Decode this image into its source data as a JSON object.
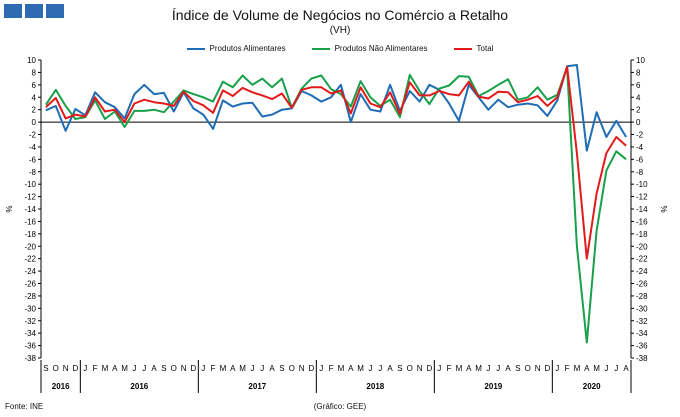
{
  "header": {
    "title": "Índice de Volume  de Negócios no Comércio a Retalho",
    "subtitle": "(VH)"
  },
  "footer": {
    "source": "Fonte: INE",
    "credit": "(Gráfico: GEE)"
  },
  "colors": {
    "logo": "#2e6bb3",
    "axis": "#000000",
    "zero_line": "#000000"
  },
  "chart_data": {
    "type": "line",
    "ylabel": "%",
    "y2label": "%",
    "ylim": [
      -38,
      10
    ],
    "ytick_step": 2,
    "grid": false,
    "legend_position": "top-center",
    "categories": [
      "S",
      "O",
      "N",
      "D",
      "J",
      "F",
      "M",
      "A",
      "M",
      "J",
      "J",
      "A",
      "S",
      "O",
      "N",
      "D",
      "J",
      "F",
      "M",
      "A",
      "M",
      "J",
      "J",
      "A",
      "S",
      "O",
      "N",
      "D",
      "J",
      "F",
      "M",
      "A",
      "M",
      "J",
      "J",
      "A",
      "S",
      "O",
      "N",
      "D",
      "J",
      "F",
      "M",
      "A",
      "M",
      "J",
      "J",
      "A",
      "S",
      "O",
      "N",
      "D",
      "J",
      "F",
      "M",
      "A",
      "M",
      "J",
      "J",
      "A"
    ],
    "year_labels": [
      {
        "label": "2016",
        "start": 0,
        "end": 3
      },
      {
        "label": "2016",
        "start": 4,
        "end": 15
      },
      {
        "label": "2017",
        "start": 16,
        "end": 27
      },
      {
        "label": "2018",
        "start": 28,
        "end": 39
      },
      {
        "label": "2019",
        "start": 40,
        "end": 51
      },
      {
        "label": "2020",
        "start": 52,
        "end": 59
      }
    ],
    "series": [
      {
        "name": "Produtos Alimentares",
        "color": "#1f6db5",
        "values": [
          1.9,
          2.6,
          -1.4,
          2.1,
          1.1,
          4.8,
          3.2,
          2.4,
          0.6,
          4.5,
          6.0,
          4.5,
          4.7,
          1.7,
          4.8,
          2.2,
          1.2,
          -1.1,
          3.5,
          2.5,
          3.0,
          3.1,
          0.9,
          1.2,
          2.0,
          2.2,
          5.0,
          4.3,
          3.3,
          4.0,
          6.0,
          0.0,
          4.5,
          2.0,
          1.7,
          6.0,
          1.8,
          5.0,
          3.3,
          6.0,
          5.2,
          3.0,
          0.2,
          6.0,
          4.0,
          2.0,
          3.6,
          2.4,
          2.8,
          3.0,
          2.7,
          1.0,
          3.5,
          9.0,
          9.2,
          -4.6,
          1.6,
          -2.4,
          0.2,
          -2.4
        ]
      },
      {
        "name": "Produtos Não Alimentares",
        "color": "#19a04b",
        "values": [
          2.8,
          5.2,
          2.6,
          0.5,
          0.8,
          3.5,
          0.5,
          1.7,
          -0.8,
          1.8,
          1.8,
          2.0,
          1.6,
          3.3,
          5.1,
          4.5,
          4.0,
          3.3,
          6.5,
          5.6,
          7.5,
          6.0,
          7.0,
          5.6,
          7.0,
          2.3,
          5.4,
          7.0,
          7.5,
          5.3,
          4.5,
          2.5,
          6.6,
          4.0,
          2.6,
          3.6,
          0.8,
          7.6,
          5.0,
          2.9,
          5.4,
          5.9,
          7.4,
          7.3,
          4.2,
          5.0,
          6.0,
          6.9,
          3.6,
          4.0,
          5.6,
          3.6,
          4.4,
          8.8,
          -20.0,
          -35.5,
          -17.5,
          -7.8,
          -4.7,
          -6.0
        ]
      },
      {
        "name": "Total",
        "color": "#e21a1a",
        "values": [
          2.4,
          3.9,
          0.6,
          1.2,
          0.9,
          4.0,
          1.7,
          2.0,
          0.0,
          3.0,
          3.6,
          3.2,
          3.0,
          2.6,
          4.9,
          3.4,
          2.7,
          1.5,
          5.1,
          4.2,
          5.5,
          4.8,
          4.3,
          3.7,
          4.6,
          2.3,
          5.2,
          5.6,
          5.6,
          4.6,
          5.1,
          1.4,
          5.6,
          3.0,
          2.4,
          4.8,
          1.3,
          6.4,
          4.3,
          4.3,
          5.0,
          4.5,
          4.3,
          6.5,
          4.1,
          3.8,
          4.9,
          4.8,
          3.2,
          3.6,
          4.2,
          2.6,
          4.0,
          8.9,
          -5.0,
          -22.0,
          -11.5,
          -5.0,
          -2.4,
          -3.8
        ]
      }
    ]
  }
}
